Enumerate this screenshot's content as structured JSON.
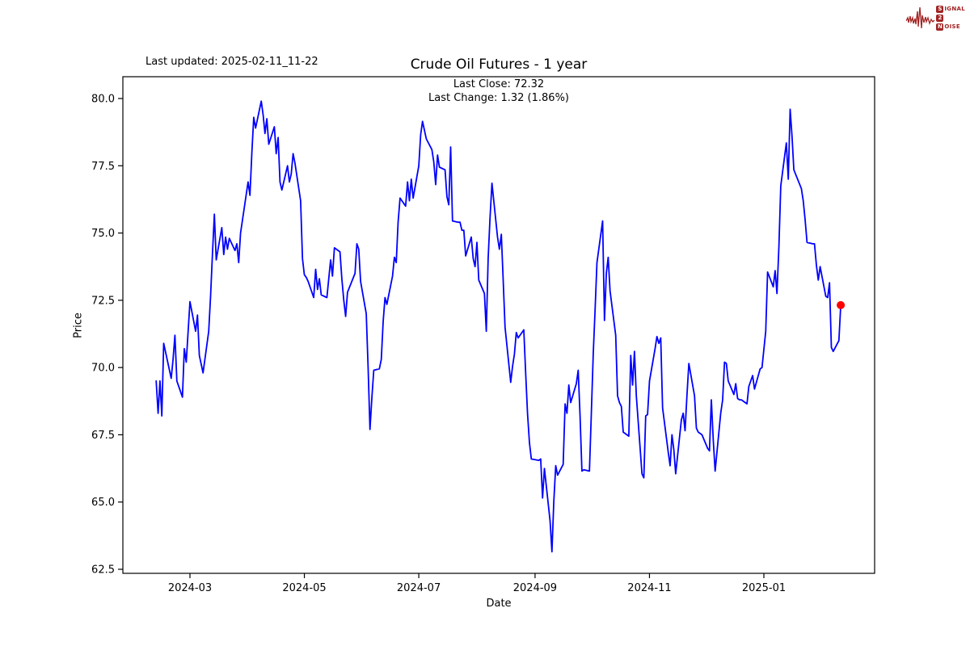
{
  "header": {
    "last_updated": "Last updated: 2025-02-11_11-22",
    "title": "Crude Oil Futures - 1 year",
    "annotation_line1": "Last Close: 72.32",
    "annotation_line2": "Last Change: 1.32 (1.86%)"
  },
  "logo": {
    "color": "#a22424",
    "word1_initial": "S",
    "word1_rest": "IGNAL",
    "word2_initial": "2",
    "word2_rest": "",
    "word3_initial": "N",
    "word3_rest": "OISE"
  },
  "axes": {
    "xlabel": "Date",
    "ylabel": "Price",
    "yticks": [
      {
        "value": 80.0,
        "label": "80.0"
      },
      {
        "value": 77.5,
        "label": "77.5"
      },
      {
        "value": 75.0,
        "label": "75.0"
      },
      {
        "value": 72.5,
        "label": "72.5"
      },
      {
        "value": 70.0,
        "label": "70.0"
      },
      {
        "value": 67.5,
        "label": "67.5"
      },
      {
        "value": 65.0,
        "label": "65.0"
      },
      {
        "value": 62.5,
        "label": "62.5"
      }
    ],
    "xticks": [
      {
        "label": "2024-03",
        "date": "2024-03-01"
      },
      {
        "label": "2024-05",
        "date": "2024-05-01"
      },
      {
        "label": "2024-07",
        "date": "2024-07-01"
      },
      {
        "label": "2024-09",
        "date": "2024-09-01"
      },
      {
        "label": "2024-11",
        "date": "2024-11-01"
      },
      {
        "label": "2025-01",
        "date": "2025-01-01"
      }
    ]
  },
  "chart_data": {
    "type": "line",
    "title": "Crude Oil Futures - 1 year",
    "xlabel": "Date",
    "ylabel": "Price",
    "x_range": [
      "2024-02-12",
      "2025-02-11"
    ],
    "ylim": [
      62.5,
      80.0
    ],
    "grid": false,
    "legend": "none",
    "line_color": "#0000ff",
    "annotations": [
      "Last Close: 72.32",
      "Last Change: 1.32 (1.86%)"
    ],
    "last_close": 72.32,
    "last_change": 1.32,
    "last_change_pct": 1.86,
    "end_marker": {
      "color": "#ff0000",
      "date": "2025-02-11",
      "value": 72.32
    },
    "points": [
      [
        "2024-02-12",
        69.5
      ],
      [
        "2024-02-13",
        68.3
      ],
      [
        "2024-02-14",
        69.5
      ],
      [
        "2024-02-15",
        68.2
      ],
      [
        "2024-02-16",
        70.9
      ],
      [
        "2024-02-20",
        69.6
      ],
      [
        "2024-02-21",
        70.3
      ],
      [
        "2024-02-22",
        71.2
      ],
      [
        "2024-02-23",
        69.5
      ],
      [
        "2024-02-26",
        68.9
      ],
      [
        "2024-02-27",
        70.7
      ],
      [
        "2024-02-28",
        70.2
      ],
      [
        "2024-03-01",
        72.45
      ],
      [
        "2024-03-04",
        71.35
      ],
      [
        "2024-03-05",
        71.95
      ],
      [
        "2024-03-06",
        70.45
      ],
      [
        "2024-03-08",
        69.8
      ],
      [
        "2024-03-11",
        71.35
      ],
      [
        "2024-03-12",
        72.65
      ],
      [
        "2024-03-13",
        74.2
      ],
      [
        "2024-03-14",
        75.7
      ],
      [
        "2024-03-15",
        74.0
      ],
      [
        "2024-03-18",
        75.2
      ],
      [
        "2024-03-19",
        74.2
      ],
      [
        "2024-03-20",
        74.85
      ],
      [
        "2024-03-21",
        74.4
      ],
      [
        "2024-03-22",
        74.8
      ],
      [
        "2024-03-25",
        74.35
      ],
      [
        "2024-03-26",
        74.6
      ],
      [
        "2024-03-27",
        73.9
      ],
      [
        "2024-03-28",
        75.0
      ],
      [
        "2024-04-01",
        76.9
      ],
      [
        "2024-04-02",
        76.4
      ],
      [
        "2024-04-03",
        78.0
      ],
      [
        "2024-04-04",
        79.3
      ],
      [
        "2024-04-05",
        78.9
      ],
      [
        "2024-04-08",
        79.9
      ],
      [
        "2024-04-09",
        79.4
      ],
      [
        "2024-04-10",
        78.7
      ],
      [
        "2024-04-11",
        79.25
      ],
      [
        "2024-04-12",
        78.3
      ],
      [
        "2024-04-15",
        78.95
      ],
      [
        "2024-04-16",
        77.95
      ],
      [
        "2024-04-17",
        78.55
      ],
      [
        "2024-04-18",
        76.9
      ],
      [
        "2024-04-19",
        76.6
      ],
      [
        "2024-04-22",
        77.5
      ],
      [
        "2024-04-23",
        76.9
      ],
      [
        "2024-04-24",
        77.2
      ],
      [
        "2024-04-25",
        77.95
      ],
      [
        "2024-04-26",
        77.6
      ],
      [
        "2024-04-29",
        76.2
      ],
      [
        "2024-04-30",
        74.05
      ],
      [
        "2024-05-01",
        73.45
      ],
      [
        "2024-05-02",
        73.35
      ],
      [
        "2024-05-03",
        73.2
      ],
      [
        "2024-05-06",
        72.6
      ],
      [
        "2024-05-07",
        73.65
      ],
      [
        "2024-05-08",
        72.9
      ],
      [
        "2024-05-09",
        73.3
      ],
      [
        "2024-05-10",
        72.7
      ],
      [
        "2024-05-13",
        72.6
      ],
      [
        "2024-05-14",
        73.3
      ],
      [
        "2024-05-15",
        74.0
      ],
      [
        "2024-05-16",
        73.4
      ],
      [
        "2024-05-17",
        74.45
      ],
      [
        "2024-05-20",
        74.3
      ],
      [
        "2024-05-21",
        73.3
      ],
      [
        "2024-05-22",
        72.5
      ],
      [
        "2024-05-23",
        71.9
      ],
      [
        "2024-05-24",
        72.8
      ],
      [
        "2024-05-28",
        73.5
      ],
      [
        "2024-05-29",
        74.6
      ],
      [
        "2024-05-30",
        74.4
      ],
      [
        "2024-05-31",
        73.2
      ],
      [
        "2024-06-03",
        72.0
      ],
      [
        "2024-06-04",
        70.0
      ],
      [
        "2024-06-05",
        67.7
      ],
      [
        "2024-06-06",
        68.9
      ],
      [
        "2024-06-07",
        69.9
      ],
      [
        "2024-06-10",
        69.95
      ],
      [
        "2024-06-11",
        70.3
      ],
      [
        "2024-06-12",
        71.7
      ],
      [
        "2024-06-13",
        72.6
      ],
      [
        "2024-06-14",
        72.35
      ],
      [
        "2024-06-17",
        73.4
      ],
      [
        "2024-06-18",
        74.1
      ],
      [
        "2024-06-19",
        73.9
      ],
      [
        "2024-06-20",
        75.4
      ],
      [
        "2024-06-21",
        76.3
      ],
      [
        "2024-06-24",
        76.0
      ],
      [
        "2024-06-25",
        76.9
      ],
      [
        "2024-06-26",
        76.2
      ],
      [
        "2024-06-27",
        77.0
      ],
      [
        "2024-06-28",
        76.3
      ],
      [
        "2024-07-01",
        77.5
      ],
      [
        "2024-07-02",
        78.65
      ],
      [
        "2024-07-03",
        79.15
      ],
      [
        "2024-07-05",
        78.5
      ],
      [
        "2024-07-08",
        78.1
      ],
      [
        "2024-07-09",
        77.65
      ],
      [
        "2024-07-10",
        76.8
      ],
      [
        "2024-07-11",
        77.9
      ],
      [
        "2024-07-12",
        77.45
      ],
      [
        "2024-07-15",
        77.35
      ],
      [
        "2024-07-16",
        76.35
      ],
      [
        "2024-07-17",
        76.05
      ],
      [
        "2024-07-18",
        78.2
      ],
      [
        "2024-07-19",
        75.45
      ],
      [
        "2024-07-22",
        75.4
      ],
      [
        "2024-07-23",
        75.4
      ],
      [
        "2024-07-24",
        75.1
      ],
      [
        "2024-07-25",
        75.1
      ],
      [
        "2024-07-26",
        74.15
      ],
      [
        "2024-07-29",
        74.85
      ],
      [
        "2024-07-30",
        74.05
      ],
      [
        "2024-07-31",
        73.75
      ],
      [
        "2024-08-01",
        74.65
      ],
      [
        "2024-08-02",
        73.25
      ],
      [
        "2024-08-05",
        72.75
      ],
      [
        "2024-08-06",
        71.35
      ],
      [
        "2024-08-07",
        74.05
      ],
      [
        "2024-08-08",
        75.55
      ],
      [
        "2024-08-09",
        76.85
      ],
      [
        "2024-08-12",
        74.85
      ],
      [
        "2024-08-13",
        74.4
      ],
      [
        "2024-08-14",
        74.95
      ],
      [
        "2024-08-15",
        73.25
      ],
      [
        "2024-08-16",
        71.5
      ],
      [
        "2024-08-19",
        69.45
      ],
      [
        "2024-08-20",
        70.05
      ],
      [
        "2024-08-21",
        70.5
      ],
      [
        "2024-08-22",
        71.3
      ],
      [
        "2024-08-23",
        71.1
      ],
      [
        "2024-08-26",
        71.4
      ],
      [
        "2024-08-27",
        69.8
      ],
      [
        "2024-08-28",
        68.3
      ],
      [
        "2024-08-29",
        67.2
      ],
      [
        "2024-08-30",
        66.6
      ],
      [
        "2024-09-03",
        66.55
      ],
      [
        "2024-09-04",
        66.6
      ],
      [
        "2024-09-05",
        65.15
      ],
      [
        "2024-09-06",
        66.25
      ],
      [
        "2024-09-09",
        64.3
      ],
      [
        "2024-09-10",
        63.15
      ],
      [
        "2024-09-11",
        65.0
      ],
      [
        "2024-09-12",
        66.35
      ],
      [
        "2024-09-13",
        66.0
      ],
      [
        "2024-09-16",
        66.4
      ],
      [
        "2024-09-17",
        68.65
      ],
      [
        "2024-09-18",
        68.3
      ],
      [
        "2024-09-19",
        69.35
      ],
      [
        "2024-09-20",
        68.7
      ],
      [
        "2024-09-23",
        69.4
      ],
      [
        "2024-09-24",
        69.9
      ],
      [
        "2024-09-25",
        68.2
      ],
      [
        "2024-09-26",
        66.15
      ],
      [
        "2024-09-27",
        66.2
      ],
      [
        "2024-09-30",
        66.15
      ],
      [
        "2024-10-01",
        68.25
      ],
      [
        "2024-10-02",
        70.5
      ],
      [
        "2024-10-03",
        72.15
      ],
      [
        "2024-10-04",
        73.9
      ],
      [
        "2024-10-07",
        75.45
      ],
      [
        "2024-10-08",
        71.75
      ],
      [
        "2024-10-09",
        73.5
      ],
      [
        "2024-10-10",
        74.1
      ],
      [
        "2024-10-11",
        72.85
      ],
      [
        "2024-10-14",
        71.2
      ],
      [
        "2024-10-15",
        68.95
      ],
      [
        "2024-10-16",
        68.7
      ],
      [
        "2024-10-17",
        68.55
      ],
      [
        "2024-10-18",
        67.6
      ],
      [
        "2024-10-21",
        67.45
      ],
      [
        "2024-10-22",
        70.45
      ],
      [
        "2024-10-23",
        69.35
      ],
      [
        "2024-10-24",
        70.6
      ],
      [
        "2024-10-25",
        68.95
      ],
      [
        "2024-10-28",
        66.05
      ],
      [
        "2024-10-29",
        65.9
      ],
      [
        "2024-10-30",
        68.2
      ],
      [
        "2024-10-31",
        68.25
      ],
      [
        "2024-11-01",
        69.5
      ],
      [
        "2024-11-04",
        70.7
      ],
      [
        "2024-11-05",
        71.15
      ],
      [
        "2024-11-06",
        70.9
      ],
      [
        "2024-11-07",
        71.1
      ],
      [
        "2024-11-08",
        68.5
      ],
      [
        "2024-11-11",
        66.85
      ],
      [
        "2024-11-12",
        66.35
      ],
      [
        "2024-11-13",
        67.5
      ],
      [
        "2024-11-14",
        66.95
      ],
      [
        "2024-11-15",
        66.05
      ],
      [
        "2024-11-18",
        68.05
      ],
      [
        "2024-11-19",
        68.3
      ],
      [
        "2024-11-20",
        67.65
      ],
      [
        "2024-11-21",
        69.0
      ],
      [
        "2024-11-22",
        70.15
      ],
      [
        "2024-11-25",
        68.95
      ],
      [
        "2024-11-26",
        67.75
      ],
      [
        "2024-11-27",
        67.6
      ],
      [
        "2024-11-29",
        67.5
      ],
      [
        "2024-12-02",
        67.0
      ],
      [
        "2024-12-03",
        66.9
      ],
      [
        "2024-12-04",
        68.8
      ],
      [
        "2024-12-05",
        67.3
      ],
      [
        "2024-12-06",
        66.15
      ],
      [
        "2024-12-09",
        68.3
      ],
      [
        "2024-12-10",
        68.8
      ],
      [
        "2024-12-11",
        70.2
      ],
      [
        "2024-12-12",
        70.15
      ],
      [
        "2024-12-13",
        69.5
      ],
      [
        "2024-12-16",
        69.0
      ],
      [
        "2024-12-17",
        69.4
      ],
      [
        "2024-12-18",
        68.85
      ],
      [
        "2024-12-19",
        68.8
      ],
      [
        "2024-12-20",
        68.8
      ],
      [
        "2024-12-23",
        68.65
      ],
      [
        "2024-12-24",
        69.3
      ],
      [
        "2024-12-26",
        69.7
      ],
      [
        "2024-12-27",
        69.2
      ],
      [
        "2024-12-30",
        69.95
      ],
      [
        "2024-12-31",
        70.0
      ],
      [
        "2025-01-02",
        71.35
      ],
      [
        "2025-01-03",
        73.55
      ],
      [
        "2025-01-06",
        73.0
      ],
      [
        "2025-01-07",
        73.6
      ],
      [
        "2025-01-08",
        72.75
      ],
      [
        "2025-01-09",
        74.5
      ],
      [
        "2025-01-10",
        76.75
      ],
      [
        "2025-01-13",
        78.35
      ],
      [
        "2025-01-14",
        77.0
      ],
      [
        "2025-01-15",
        79.6
      ],
      [
        "2025-01-16",
        78.6
      ],
      [
        "2025-01-17",
        77.35
      ],
      [
        "2025-01-21",
        76.65
      ],
      [
        "2025-01-22",
        76.2
      ],
      [
        "2025-01-23",
        75.5
      ],
      [
        "2025-01-24",
        74.65
      ],
      [
        "2025-01-27",
        74.6
      ],
      [
        "2025-01-28",
        74.6
      ],
      [
        "2025-01-29",
        73.8
      ],
      [
        "2025-01-30",
        73.25
      ],
      [
        "2025-01-31",
        73.75
      ],
      [
        "2025-02-03",
        72.65
      ],
      [
        "2025-02-04",
        72.6
      ],
      [
        "2025-02-05",
        73.15
      ],
      [
        "2025-02-06",
        70.75
      ],
      [
        "2025-02-07",
        70.6
      ],
      [
        "2025-02-10",
        71.0
      ],
      [
        "2025-02-11",
        72.32
      ]
    ]
  }
}
